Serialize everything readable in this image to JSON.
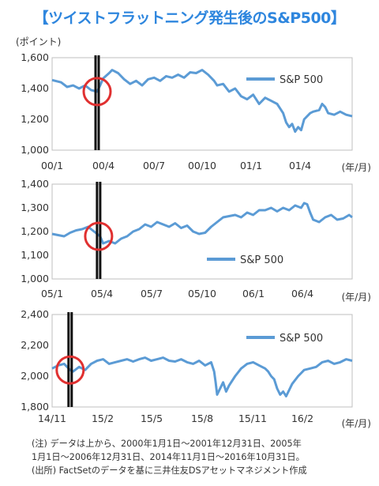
{
  "title": "【ツイストフラットニング発生後のS&P500】",
  "unit_label": "(ポイント)",
  "chart_data": [
    {
      "type": "line",
      "series": [
        {
          "name": "S&P 500",
          "color": "#5b9bd5"
        }
      ],
      "yticks": [
        "1,600",
        "1,400",
        "1,200",
        "1,000"
      ],
      "ylim": [
        1000,
        1600
      ],
      "xticks": [
        "00/1",
        "00/4",
        "00/7",
        "00/10",
        "01/1",
        "01/4"
      ],
      "xlabel": "(年/月)",
      "points": [
        [
          0,
          1455
        ],
        [
          0.03,
          1440
        ],
        [
          0.05,
          1410
        ],
        [
          0.07,
          1420
        ],
        [
          0.09,
          1400
        ],
        [
          0.11,
          1420
        ],
        [
          0.13,
          1390
        ],
        [
          0.15,
          1380
        ],
        [
          0.16,
          1420
        ],
        [
          0.17,
          1465
        ],
        [
          0.19,
          1500
        ],
        [
          0.2,
          1520
        ],
        [
          0.22,
          1500
        ],
        [
          0.24,
          1460
        ],
        [
          0.26,
          1430
        ],
        [
          0.28,
          1450
        ],
        [
          0.3,
          1420
        ],
        [
          0.32,
          1460
        ],
        [
          0.34,
          1470
        ],
        [
          0.36,
          1450
        ],
        [
          0.38,
          1480
        ],
        [
          0.4,
          1470
        ],
        [
          0.42,
          1490
        ],
        [
          0.44,
          1470
        ],
        [
          0.46,
          1505
        ],
        [
          0.48,
          1500
        ],
        [
          0.5,
          1520
        ],
        [
          0.52,
          1490
        ],
        [
          0.54,
          1450
        ],
        [
          0.55,
          1420
        ],
        [
          0.57,
          1430
        ],
        [
          0.59,
          1380
        ],
        [
          0.61,
          1400
        ],
        [
          0.63,
          1350
        ],
        [
          0.65,
          1330
        ],
        [
          0.67,
          1360
        ],
        [
          0.69,
          1300
        ],
        [
          0.71,
          1340
        ],
        [
          0.73,
          1320
        ],
        [
          0.75,
          1300
        ],
        [
          0.76,
          1270
        ],
        [
          0.77,
          1240
        ],
        [
          0.78,
          1180
        ],
        [
          0.79,
          1150
        ],
        [
          0.8,
          1170
        ],
        [
          0.81,
          1120
        ],
        [
          0.82,
          1150
        ],
        [
          0.83,
          1130
        ],
        [
          0.84,
          1200
        ],
        [
          0.86,
          1240
        ],
        [
          0.87,
          1250
        ],
        [
          0.89,
          1260
        ],
        [
          0.9,
          1300
        ],
        [
          0.91,
          1280
        ],
        [
          0.92,
          1240
        ],
        [
          0.94,
          1230
        ],
        [
          0.96,
          1250
        ],
        [
          0.98,
          1230
        ],
        [
          1.0,
          1220
        ]
      ],
      "event_x": 0.15
    },
    {
      "type": "line",
      "series": [
        {
          "name": "S&P 500",
          "color": "#5b9bd5"
        }
      ],
      "yticks": [
        "1,400",
        "1,300",
        "1,200",
        "1,100",
        "1,000"
      ],
      "ylim": [
        1000,
        1400
      ],
      "xticks": [
        "05/1",
        "05/4",
        "05/7",
        "05/10",
        "06/1",
        "06/4"
      ],
      "xlabel": "(年/月)",
      "points": [
        [
          0,
          1190
        ],
        [
          0.02,
          1185
        ],
        [
          0.04,
          1180
        ],
        [
          0.06,
          1195
        ],
        [
          0.08,
          1205
        ],
        [
          0.1,
          1210
        ],
        [
          0.12,
          1220
        ],
        [
          0.14,
          1200
        ],
        [
          0.16,
          1180
        ],
        [
          0.17,
          1150
        ],
        [
          0.19,
          1160
        ],
        [
          0.21,
          1150
        ],
        [
          0.23,
          1170
        ],
        [
          0.25,
          1180
        ],
        [
          0.27,
          1200
        ],
        [
          0.29,
          1210
        ],
        [
          0.31,
          1230
        ],
        [
          0.33,
          1220
        ],
        [
          0.35,
          1240
        ],
        [
          0.37,
          1230
        ],
        [
          0.39,
          1220
        ],
        [
          0.41,
          1235
        ],
        [
          0.43,
          1215
        ],
        [
          0.45,
          1225
        ],
        [
          0.47,
          1200
        ],
        [
          0.49,
          1190
        ],
        [
          0.51,
          1195
        ],
        [
          0.53,
          1220
        ],
        [
          0.55,
          1240
        ],
        [
          0.57,
          1260
        ],
        [
          0.59,
          1265
        ],
        [
          0.61,
          1270
        ],
        [
          0.63,
          1260
        ],
        [
          0.65,
          1280
        ],
        [
          0.67,
          1270
        ],
        [
          0.69,
          1290
        ],
        [
          0.71,
          1290
        ],
        [
          0.73,
          1300
        ],
        [
          0.75,
          1285
        ],
        [
          0.77,
          1300
        ],
        [
          0.79,
          1290
        ],
        [
          0.81,
          1310
        ],
        [
          0.83,
          1300
        ],
        [
          0.84,
          1320
        ],
        [
          0.85,
          1315
        ],
        [
          0.86,
          1280
        ],
        [
          0.87,
          1250
        ],
        [
          0.89,
          1240
        ],
        [
          0.91,
          1260
        ],
        [
          0.93,
          1270
        ],
        [
          0.95,
          1250
        ],
        [
          0.97,
          1255
        ],
        [
          0.99,
          1270
        ],
        [
          1.0,
          1260
        ]
      ],
      "event_x": 0.155
    },
    {
      "type": "line",
      "series": [
        {
          "name": "S&P 500",
          "color": "#5b9bd5"
        }
      ],
      "yticks": [
        "2,400",
        "2,200",
        "2,000",
        "1,800"
      ],
      "ylim": [
        1800,
        2400
      ],
      "xticks": [
        "14/11",
        "15/2",
        "15/5",
        "15/8",
        "15/11",
        "16/2"
      ],
      "xlabel": "(年/月)",
      "points": [
        [
          0,
          2050
        ],
        [
          0.02,
          2070
        ],
        [
          0.04,
          2080
        ],
        [
          0.05,
          2060
        ],
        [
          0.06,
          2040
        ],
        [
          0.07,
          2030
        ],
        [
          0.09,
          2060
        ],
        [
          0.11,
          2040
        ],
        [
          0.13,
          2080
        ],
        [
          0.15,
          2100
        ],
        [
          0.17,
          2110
        ],
        [
          0.19,
          2080
        ],
        [
          0.21,
          2090
        ],
        [
          0.23,
          2100
        ],
        [
          0.25,
          2110
        ],
        [
          0.27,
          2095
        ],
        [
          0.29,
          2110
        ],
        [
          0.31,
          2120
        ],
        [
          0.33,
          2100
        ],
        [
          0.35,
          2110
        ],
        [
          0.37,
          2120
        ],
        [
          0.39,
          2100
        ],
        [
          0.41,
          2095
        ],
        [
          0.43,
          2110
        ],
        [
          0.45,
          2090
        ],
        [
          0.47,
          2080
        ],
        [
          0.49,
          2100
        ],
        [
          0.51,
          2070
        ],
        [
          0.53,
          2090
        ],
        [
          0.54,
          2030
        ],
        [
          0.545,
          1960
        ],
        [
          0.55,
          1880
        ],
        [
          0.56,
          1920
        ],
        [
          0.57,
          1960
        ],
        [
          0.58,
          1900
        ],
        [
          0.59,
          1940
        ],
        [
          0.61,
          2000
        ],
        [
          0.63,
          2050
        ],
        [
          0.65,
          2080
        ],
        [
          0.67,
          2090
        ],
        [
          0.69,
          2070
        ],
        [
          0.71,
          2050
        ],
        [
          0.72,
          2030
        ],
        [
          0.73,
          2000
        ],
        [
          0.74,
          1980
        ],
        [
          0.75,
          1920
        ],
        [
          0.76,
          1880
        ],
        [
          0.77,
          1900
        ],
        [
          0.78,
          1870
        ],
        [
          0.79,
          1910
        ],
        [
          0.8,
          1950
        ],
        [
          0.82,
          2000
        ],
        [
          0.84,
          2040
        ],
        [
          0.86,
          2050
        ],
        [
          0.88,
          2060
        ],
        [
          0.9,
          2090
        ],
        [
          0.92,
          2100
        ],
        [
          0.94,
          2080
        ],
        [
          0.96,
          2090
        ],
        [
          0.98,
          2110
        ],
        [
          1.0,
          2100
        ]
      ],
      "event_x": 0.06
    }
  ],
  "notes": [
    "(注) データは上から、2000年1月1日～2001年12月31日、2005年",
    "1月1日～2006年12月31日、2014年11月1日～2016年10月31日。",
    "(出所) FactSetのデータを基に三井住友DSアセットマネジメント作成"
  ]
}
